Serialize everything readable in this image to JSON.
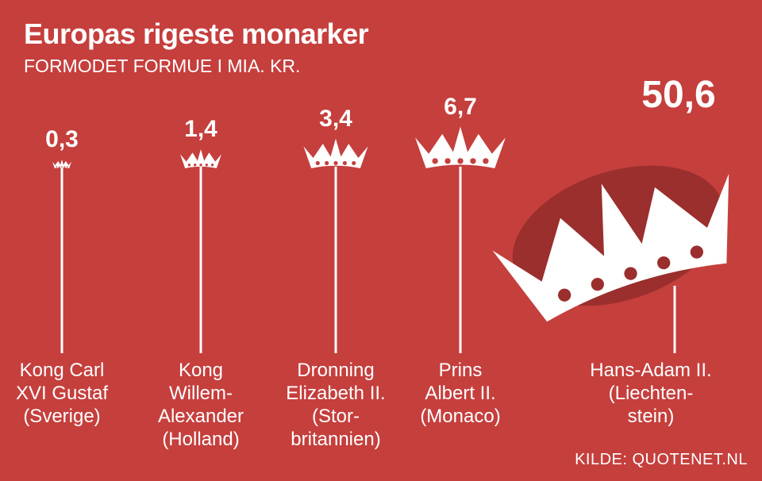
{
  "chart_data": {
    "type": "pictogram",
    "title": "Europas rigeste monarker",
    "subtitle": "FORMODET FORMUE I MIA. KR.",
    "categories": [
      "Kong Carl\nXVI Gustaf\n(Sverige)",
      "Kong\nWillem-\nAlexander\n(Holland)",
      "Dronning\nElizabeth II.\n(Stor-\nbritannien)",
      "Prins\nAlbert II.\n(Monaco)",
      "Hans-Adam II.\n(Liechten-\nstein)"
    ],
    "values": [
      0.3,
      1.4,
      3.4,
      6.7,
      50.6
    ],
    "value_labels": [
      "0,3",
      "1,4",
      "3,4",
      "6,7",
      "50,6"
    ],
    "color": "#ffffff",
    "source": "KILDE: QUOTENET.NL"
  }
}
